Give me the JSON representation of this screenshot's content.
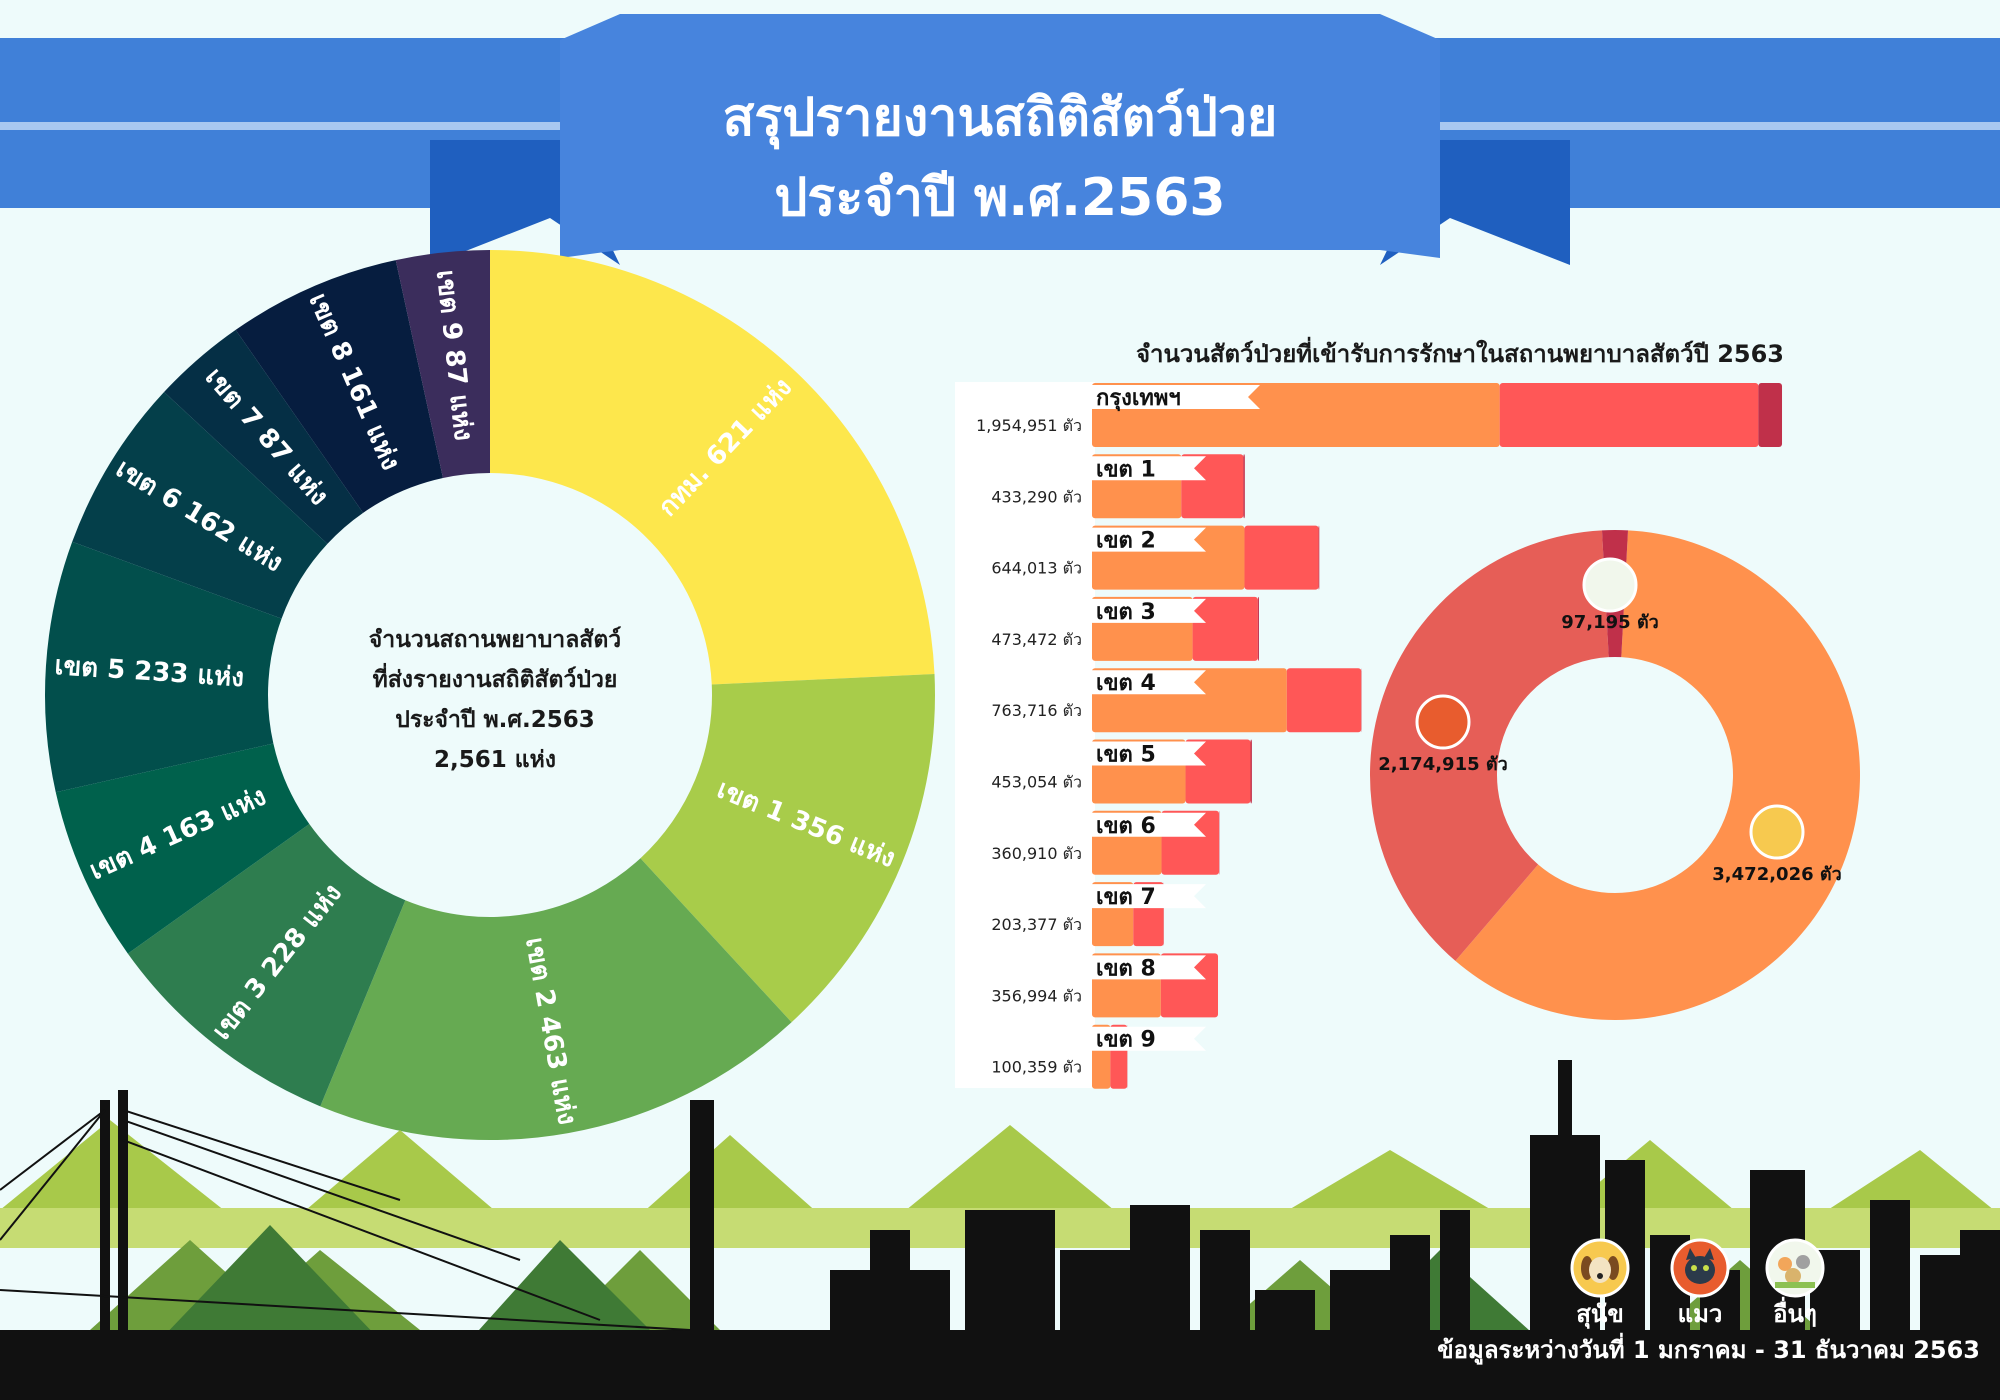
{
  "header": {
    "title_line1": "สรุปรายงานสถิติสัตว์ป่วย",
    "title_line2": "ประจำปี พ.ศ.2563"
  },
  "colors": {
    "banner": "#4080d8",
    "banner_dark": "#1f5fbf",
    "dog": "#ff914d",
    "cat": "#ff5757",
    "other": "#c0304a",
    "background": "#eefbfb"
  },
  "chart_data": [
    {
      "type": "pie",
      "variant": "donut",
      "center_label": [
        "จำนวนสถานพยาบาลสัตว์",
        "ที่ส่งรายงานสถิติสัตว์ป่วย",
        "ประจำปี พ.ศ.2563",
        "2,561 แห่ง"
      ],
      "slices": [
        {
          "label": "กทม. 621 แห่ง",
          "value": 621,
          "color": "#fde74c"
        },
        {
          "label": "เขต 1 356 แห่ง",
          "value": 356,
          "color": "#a8cc4a"
        },
        {
          "label": "เขต 2 463 แห่ง",
          "value": 463,
          "color": "#66aa52"
        },
        {
          "label": "เขต 3 228 แห่ง",
          "value": 228,
          "color": "#2e7d4f"
        },
        {
          "label": "เขต 4 163  แห่ง",
          "value": 163,
          "color": "#00614c"
        },
        {
          "label": "เขต 5 233  แห่ง",
          "value": 233,
          "color": "#024f4c"
        },
        {
          "label": "เขต 6 162  แห่ง",
          "value": 162,
          "color": "#043f4a"
        },
        {
          "label": "เขต 7 87  แห่ง",
          "value": 87,
          "color": "#052f45"
        },
        {
          "label": "เขต 8 161  แห่ง",
          "value": 161,
          "color": "#061d3f"
        },
        {
          "label": "เขต 9 87  แห่ง",
          "value": 87,
          "color": "#3b2d5c"
        }
      ]
    },
    {
      "type": "bar",
      "orientation": "horizontal",
      "stacked": true,
      "title": "จำนวนสัตว์ป่วยที่เข้ารับการรักษาในสถานพยาบาลสัตว์ปี 2563",
      "categories": [
        "กรุงเทพฯ",
        "เขต 1",
        "เขต 2",
        "เขต 3",
        "เขต 4",
        "เขต 5",
        "เขต 6",
        "เขต 7",
        "เขต 8",
        "เขต 9"
      ],
      "totals": [
        "1,954,951 ตัว",
        "433,290 ตัว",
        "644,013 ตัว",
        "473,472 ตัว",
        "763,716 ตัว",
        "453,054 ตัว",
        "360,910 ตัว",
        "203,377 ตัว",
        "356,994 ตัว",
        "100,359 ตัว"
      ],
      "series": [
        {
          "name": "สุนัข",
          "color": "#ff914d",
          "values": [
            1155000,
            253000,
            432000,
            285000,
            552000,
            265000,
            197000,
            117000,
            195000,
            52000
          ]
        },
        {
          "name": "แมว",
          "color": "#ff5757",
          "values": [
            733000,
            176000,
            210000,
            185000,
            211000,
            184000,
            163000,
            86000,
            162000,
            48000
          ]
        },
        {
          "name": "อื่นๆ",
          "color": "#c0304a",
          "values": [
            67000,
            4000,
            2000,
            3000,
            700,
            4000,
            900,
            400,
            0,
            400
          ]
        }
      ],
      "xlim": [
        0,
        1954951
      ]
    },
    {
      "type": "pie",
      "variant": "donut",
      "slices": [
        {
          "label": "3,472,026 ตัว",
          "value": 3472026,
          "color": "#ff914d",
          "icon": "dog-icon"
        },
        {
          "label": "2,174,915 ตัว",
          "value": 2174915,
          "color": "#e65e57",
          "icon": "cat-icon"
        },
        {
          "label": "97,195 ตัว",
          "value": 97195,
          "color": "#c0304a",
          "icon": "animals-icon"
        }
      ]
    }
  ],
  "legend": [
    {
      "label": "สุนัข",
      "icon": "dog-icon"
    },
    {
      "label": "แมว",
      "icon": "cat-icon"
    },
    {
      "label": "อื่นๆ",
      "icon": "animals-icon"
    }
  ],
  "footer": {
    "note": "ข้อมูลระหว่างวันที่ 1 มกราคม - 31 ธันวาคม 2563"
  }
}
